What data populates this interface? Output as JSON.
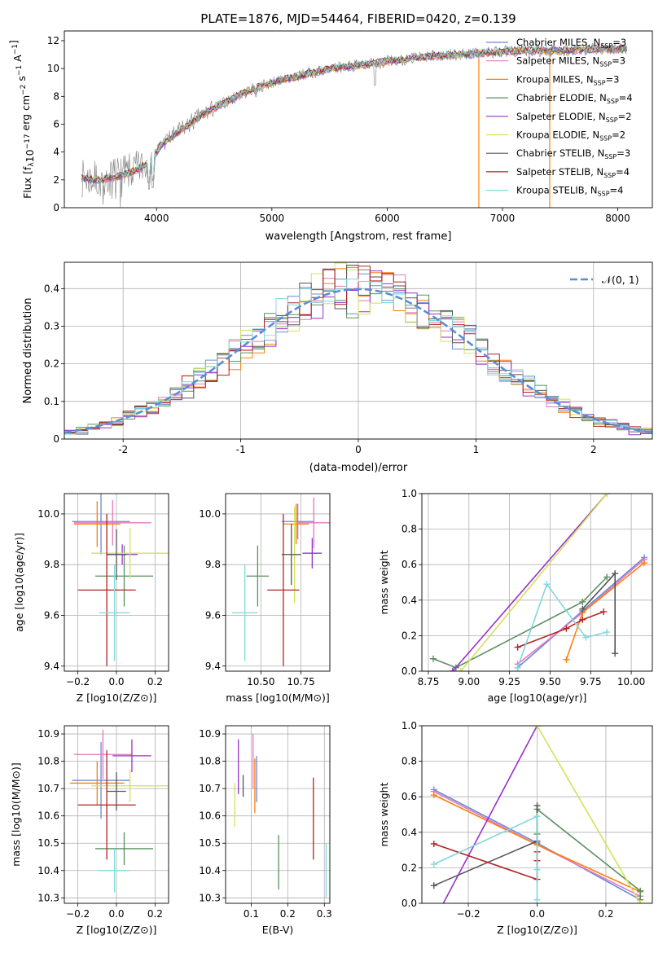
{
  "colors": {
    "Chabrier MILES": "#6a8ad8",
    "Salpeter MILES": "#e377c2",
    "Kroupa MILES": "#ff7f0e",
    "Chabrier ELODIE": "#5a8f61",
    "Salpeter ELODIE": "#9932cc",
    "Kroupa ELODIE": "#d4e157",
    "Chabrier STELIB": "#555555",
    "Salpeter STELIB": "#b22222",
    "Kroupa STELIB": "#7fd8dc",
    "data": "#7f7f7f",
    "normal": "#5b8dd9"
  },
  "chart_data": [
    {
      "id": "spectrum",
      "type": "line",
      "title": "PLATE=1876, MJD=54464, FIBERID=0420, z=0.139",
      "xlabel": "wavelength [Angstrom, rest frame]",
      "ylabel": "Flux [fλ10⁻¹⁷ erg cm⁻² s⁻¹ A⁻¹]",
      "xlim": [
        3200,
        8300
      ],
      "ylim": [
        0,
        12.7
      ],
      "xticks": [
        4000,
        5000,
        6000,
        7000,
        8000
      ],
      "yticks": [
        0,
        2,
        4,
        6,
        8,
        10,
        12
      ],
      "grid": false,
      "legend": "top-right",
      "continuum_x": [
        3350,
        3500,
        3700,
        3850,
        3950,
        4050,
        4200,
        4400,
        4600,
        4800,
        5000,
        5200,
        5400,
        5600,
        5800,
        6000,
        6200,
        6400,
        6600,
        6800,
        7000,
        7200,
        7400,
        7600,
        7800,
        8000,
        8080
      ],
      "continuum_y": [
        2.1,
        2.0,
        2.3,
        2.8,
        3.4,
        4.6,
        5.5,
        6.7,
        7.6,
        8.4,
        9.0,
        9.4,
        9.8,
        10.1,
        10.3,
        10.5,
        10.7,
        10.9,
        11.0,
        11.1,
        11.2,
        11.3,
        11.3,
        11.3,
        11.4,
        11.4,
        11.4
      ],
      "series": [
        {
          "name": "Chabrier MILES, N_SSP=3",
          "label_main": "Chabrier MILES, N",
          "label_sub": "SSP",
          "label_tail": "=3"
        },
        {
          "name": "Salpeter MILES, N_SSP=3",
          "label_main": "Salpeter MILES, N",
          "label_sub": "SSP",
          "label_tail": "=3"
        },
        {
          "name": "Kroupa MILES, N_SSP=3",
          "label_main": "Kroupa MILES, N",
          "label_sub": "SSP",
          "label_tail": "=3"
        },
        {
          "name": "Chabrier ELODIE, N_SSP=4",
          "label_main": "Chabrier ELODIE, N",
          "label_sub": "SSP",
          "label_tail": "=4"
        },
        {
          "name": "Salpeter ELODIE, N_SSP=2",
          "label_main": "Salpeter ELODIE, N",
          "label_sub": "SSP",
          "label_tail": "=2"
        },
        {
          "name": "Kroupa ELODIE, N_SSP=2",
          "label_main": "Kroupa ELODIE, N",
          "label_sub": "SSP",
          "label_tail": "=2"
        },
        {
          "name": "Chabrier STELIB, N_SSP=3",
          "label_main": "Chabrier STELIB, N",
          "label_sub": "SSP",
          "label_tail": "=3"
        },
        {
          "name": "Salpeter STELIB, N_SSP=4",
          "label_main": "Salpeter STELIB, N",
          "label_sub": "SSP",
          "label_tail": "=4"
        },
        {
          "name": "Kroupa STELIB, N_SSP=4",
          "label_main": "Kroupa STELIB, N",
          "label_sub": "SSP",
          "label_tail": "=4"
        }
      ],
      "vertical_lines": [
        {
          "x": 6795,
          "y0": 0,
          "y1": 10.7,
          "model": "Kroupa MILES"
        },
        {
          "x": 7410,
          "y0": 0,
          "y1": 11.3,
          "model": "Kroupa MILES"
        }
      ]
    },
    {
      "id": "residuals",
      "type": "histogram",
      "xlabel": "(data-model)/error",
      "ylabel": "Normed distribution",
      "xlim": [
        -2.5,
        2.5
      ],
      "ylim": [
        0,
        0.47
      ],
      "xticks": [
        -2,
        -1,
        0,
        1,
        2
      ],
      "yticks": [
        0.0,
        0.1,
        0.2,
        0.3,
        0.4
      ],
      "grid": true,
      "legend": "top-right",
      "legend_label": "𝒩(0, 1)",
      "bin_width": 0.1,
      "x_start": -2.5,
      "hist_models": [
        "Chabrier MILES",
        "Salpeter MILES",
        "Kroupa MILES",
        "Chabrier ELODIE",
        "Salpeter ELODIE",
        "Kroupa ELODIE",
        "Chabrier STELIB",
        "Salpeter STELIB",
        "Kroupa STELIB"
      ],
      "normal_curve": {
        "mean": 0,
        "sigma": 1
      }
    },
    {
      "id": "age-vs-Z",
      "type": "scatter",
      "xlabel": "Z [log10(Z/Z⊙)]",
      "ylabel": "age [log10(age/yr)]",
      "xlim": [
        -0.27,
        0.27
      ],
      "ylim": [
        9.38,
        10.08
      ],
      "xticks": [
        -0.2,
        0.0,
        0.2
      ],
      "xticklabels": [
        "−0.2",
        "0.0",
        "0.2"
      ],
      "yticks": [
        9.4,
        9.6,
        9.8,
        10.0
      ],
      "yticklabels": [
        "9.4",
        "9.6",
        "9.8",
        "10.0"
      ],
      "grid": true,
      "points": [
        {
          "model": "Chabrier MILES",
          "x": -0.08,
          "xerr": 0.15,
          "y": 9.97,
          "yerr": 0.13
        },
        {
          "model": "Salpeter MILES",
          "x": -0.02,
          "xerr": 0.2,
          "y": 9.965,
          "yerr": 0.09
        },
        {
          "model": "Kroupa MILES",
          "x": -0.1,
          "xerr": 0.12,
          "y": 9.96,
          "yerr": 0.09
        },
        {
          "model": "Chabrier ELODIE",
          "x": 0.04,
          "xerr": 0.15,
          "y": 9.755,
          "yerr": 0.12
        },
        {
          "model": "Salpeter ELODIE",
          "x": 0.03,
          "xerr": 0.08,
          "y": 9.84,
          "yerr": 0.04
        },
        {
          "model": "Kroupa ELODIE",
          "x": 0.07,
          "xerr": 0.2,
          "y": 9.845,
          "yerr": 0.1
        },
        {
          "model": "Chabrier STELIB",
          "x": 0.0,
          "xerr": 0.05,
          "y": 9.84,
          "yerr": 0.1
        },
        {
          "model": "Salpeter STELIB",
          "x": -0.05,
          "xerr": 0.15,
          "y": 9.7,
          "yerr": 0.3
        },
        {
          "model": "Kroupa STELIB",
          "x": -0.01,
          "xerr": 0.08,
          "y": 9.61,
          "yerr": 0.19
        }
      ]
    },
    {
      "id": "age-vs-mass",
      "type": "scatter",
      "xlabel": "mass [log10(M/M⊙)]",
      "ylabel": "",
      "xlim": [
        10.28,
        10.93
      ],
      "ylim": [
        9.38,
        10.08
      ],
      "xticks": [
        10.5,
        10.75
      ],
      "xticklabels": [
        "10.50",
        "10.75"
      ],
      "yticks": [
        9.4,
        9.6,
        9.8,
        10.0
      ],
      "yticklabels": [
        "9.4",
        "9.6",
        "9.8",
        "10.0"
      ],
      "grid": true,
      "points": [
        {
          "model": "Chabrier MILES",
          "x": 10.73,
          "xerr": 0.1,
          "y": 9.97,
          "yerr": 0.07
        },
        {
          "model": "Salpeter MILES",
          "x": 10.83,
          "xerr": 0.1,
          "y": 9.965,
          "yerr": 0.1
        },
        {
          "model": "Kroupa MILES",
          "x": 10.72,
          "xerr": 0.08,
          "y": 9.96,
          "yerr": 0.08
        },
        {
          "model": "Chabrier ELODIE",
          "x": 10.48,
          "xerr": 0.07,
          "y": 9.755,
          "yerr": 0.12
        },
        {
          "model": "Salpeter ELODIE",
          "x": 10.82,
          "xerr": 0.06,
          "y": 9.845,
          "yerr": 0.06
        },
        {
          "model": "Kroupa ELODIE",
          "x": 10.71,
          "xerr": 0.04,
          "y": 9.84,
          "yerr": 0.19
        },
        {
          "model": "Chabrier STELIB",
          "x": 10.69,
          "xerr": 0.06,
          "y": 9.84,
          "yerr": 0.12
        },
        {
          "model": "Salpeter STELIB",
          "x": 10.64,
          "xerr": 0.1,
          "y": 9.7,
          "yerr": 0.3
        },
        {
          "model": "Kroupa STELIB",
          "x": 10.4,
          "xerr": 0.08,
          "y": 9.61,
          "yerr": 0.19
        }
      ]
    },
    {
      "id": "weight-vs-age",
      "type": "line",
      "xlabel": "age [log10(age/yr)]",
      "ylabel": "mass weight",
      "xlim": [
        8.71,
        10.13
      ],
      "ylim": [
        0,
        1
      ],
      "xticks": [
        8.75,
        9.0,
        9.25,
        9.5,
        9.75,
        10.0
      ],
      "xticklabels": [
        "8.75",
        "9.00",
        "9.25",
        "9.50",
        "9.75",
        "10.00"
      ],
      "yticks": [
        0,
        0.2,
        0.4,
        0.6,
        0.8,
        1.0
      ],
      "yticklabels": [
        "0.0",
        "0.2",
        "0.4",
        "0.6",
        "0.8",
        "1.0"
      ],
      "grid": true,
      "series": [
        {
          "model": "Chabrier MILES",
          "x": [
            9.3,
            9.7,
            10.08
          ],
          "y": [
            0.02,
            0.34,
            0.64
          ]
        },
        {
          "model": "Salpeter MILES",
          "x": [
            9.3,
            9.7,
            10.08
          ],
          "y": [
            0.04,
            0.33,
            0.63
          ]
        },
        {
          "model": "Kroupa MILES",
          "x": [
            9.6,
            9.7,
            10.08
          ],
          "y": [
            0.065,
            0.33,
            0.61
          ]
        },
        {
          "model": "Chabrier ELODIE",
          "x": [
            8.78,
            8.92,
            9.7,
            9.85
          ],
          "y": [
            0.07,
            0.02,
            0.39,
            0.53
          ]
        },
        {
          "model": "Salpeter ELODIE",
          "x": [
            8.9,
            9.85
          ],
          "y": [
            0.0,
            1.0
          ]
        },
        {
          "model": "Kroupa ELODIE",
          "x": [
            8.95,
            9.85
          ],
          "y": [
            0.0,
            1.0
          ]
        },
        {
          "model": "Chabrier STELIB",
          "x": [
            9.7,
            9.9,
            9.9
          ],
          "y": [
            0.35,
            0.55,
            0.1
          ]
        },
        {
          "model": "Salpeter STELIB",
          "x": [
            9.3,
            9.6,
            9.7,
            9.83
          ],
          "y": [
            0.135,
            0.24,
            0.29,
            0.335
          ]
        },
        {
          "model": "Kroupa STELIB",
          "x": [
            9.3,
            9.48,
            9.72,
            9.85
          ],
          "y": [
            0.02,
            0.49,
            0.19,
            0.22
          ]
        }
      ]
    },
    {
      "id": "mass-vs-Z",
      "type": "scatter",
      "xlabel": "Z [log10(Z/Z⊙)]",
      "ylabel": "mass [log10(M/M⊙)]",
      "xlim": [
        -0.27,
        0.27
      ],
      "ylim": [
        10.28,
        10.93
      ],
      "xticks": [
        -0.2,
        0.0,
        0.2
      ],
      "xticklabels": [
        "−0.2",
        "0.0",
        "0.2"
      ],
      "yticks": [
        10.3,
        10.4,
        10.5,
        10.6,
        10.7,
        10.8,
        10.9
      ],
      "yticklabels": [
        "10.3",
        "10.4",
        "10.5",
        "10.6",
        "10.7",
        "10.8",
        "10.9"
      ],
      "grid": true,
      "points": [
        {
          "model": "Chabrier MILES",
          "x": -0.08,
          "xerr": 0.15,
          "y": 10.73,
          "yerr": 0.14
        },
        {
          "model": "Salpeter MILES",
          "x": -0.07,
          "xerr": 0.15,
          "y": 10.825,
          "yerr": 0.09
        },
        {
          "model": "Kroupa MILES",
          "x": -0.1,
          "xerr": 0.14,
          "y": 10.72,
          "yerr": 0.08
        },
        {
          "model": "Chabrier ELODIE",
          "x": 0.04,
          "xerr": 0.15,
          "y": 10.48,
          "yerr": 0.06
        },
        {
          "model": "Salpeter ELODIE",
          "x": 0.08,
          "xerr": 0.1,
          "y": 10.82,
          "yerr": 0.06
        },
        {
          "model": "Kroupa ELODIE",
          "x": 0.07,
          "xerr": 0.2,
          "y": 10.71,
          "yerr": 0.06
        },
        {
          "model": "Chabrier STELIB",
          "x": 0.0,
          "xerr": 0.05,
          "y": 10.69,
          "yerr": 0.07
        },
        {
          "model": "Salpeter STELIB",
          "x": -0.05,
          "xerr": 0.15,
          "y": 10.64,
          "yerr": 0.2
        },
        {
          "model": "Kroupa STELIB",
          "x": -0.01,
          "xerr": 0.08,
          "y": 10.4,
          "yerr": 0.08
        }
      ]
    },
    {
      "id": "mass-vs-EBV",
      "type": "scatter",
      "xlabel": "E(B-V)",
      "ylabel": "",
      "xlim": [
        0.03,
        0.315
      ],
      "ylim": [
        10.28,
        10.93
      ],
      "xticks": [
        0.1,
        0.2,
        0.3
      ],
      "xticklabels": [
        "0.1",
        "0.2",
        "0.3"
      ],
      "yticks": [
        10.3,
        10.4,
        10.5,
        10.6,
        10.7,
        10.8,
        10.9
      ],
      "yticklabels": [
        "10.3",
        "10.4",
        "10.5",
        "10.6",
        "10.7",
        "10.8",
        "10.9"
      ],
      "grid": true,
      "points": [
        {
          "model": "Chabrier MILES",
          "x": 0.115,
          "y": 10.735,
          "yerr": 0.085
        },
        {
          "model": "Salpeter MILES",
          "x": 0.105,
          "y": 10.8,
          "yerr": 0.1
        },
        {
          "model": "Kroupa MILES",
          "x": 0.11,
          "y": 10.71,
          "yerr": 0.1
        },
        {
          "model": "Chabrier ELODIE",
          "x": 0.175,
          "y": 10.43,
          "yerr": 0.1
        },
        {
          "model": "Salpeter ELODIE",
          "x": 0.065,
          "y": 10.78,
          "yerr": 0.1
        },
        {
          "model": "Kroupa ELODIE",
          "x": 0.055,
          "y": 10.64,
          "yerr": 0.08
        },
        {
          "model": "Chabrier STELIB",
          "x": 0.078,
          "y": 10.71,
          "yerr": 0.04
        },
        {
          "model": "Salpeter STELIB",
          "x": 0.27,
          "y": 10.59,
          "yerr": 0.15
        },
        {
          "model": "Kroupa STELIB",
          "x": 0.305,
          "y": 10.4,
          "yerr": 0.1
        }
      ]
    },
    {
      "id": "weight-vs-Z",
      "type": "line",
      "xlabel": "Z [log10(Z/Z⊙)]",
      "ylabel": "mass weight",
      "xlim": [
        -0.335,
        0.335
      ],
      "ylim": [
        0,
        1
      ],
      "xticks": [
        -0.2,
        0.0,
        0.2
      ],
      "xticklabels": [
        "−0.2",
        "0.0",
        "0.2"
      ],
      "yticks": [
        0,
        0.2,
        0.4,
        0.6,
        0.8,
        1.0
      ],
      "yticklabels": [
        "0.0",
        "0.2",
        "0.4",
        "0.6",
        "0.8",
        "1.0"
      ],
      "grid": true,
      "series": [
        {
          "model": "Chabrier MILES",
          "x": [
            -0.3,
            0.0,
            0.3
          ],
          "y": [
            0.64,
            0.34,
            0.02
          ]
        },
        {
          "model": "Salpeter MILES",
          "x": [
            -0.3,
            0.0,
            0.3
          ],
          "y": [
            0.63,
            0.33,
            0.04
          ]
        },
        {
          "model": "Kroupa MILES",
          "x": [
            -0.3,
            0.0,
            0.3
          ],
          "y": [
            0.61,
            0.33,
            0.065
          ]
        },
        {
          "model": "Chabrier ELODIE",
          "x": [
            0.0,
            0.0,
            0.3,
            0.3
          ],
          "y": [
            0.39,
            0.53,
            0.07,
            0.02
          ]
        },
        {
          "model": "Salpeter ELODIE",
          "x": [
            -0.3,
            0.0
          ],
          "y": [
            -0.1,
            1.0
          ]
        },
        {
          "model": "Kroupa ELODIE",
          "x": [
            0.0,
            0.3
          ],
          "y": [
            1.0,
            0.0
          ]
        },
        {
          "model": "Chabrier STELIB",
          "x": [
            -0.3,
            0.0,
            0.0
          ],
          "y": [
            0.1,
            0.35,
            0.55
          ]
        },
        {
          "model": "Salpeter STELIB",
          "x": [
            -0.3,
            0.0,
            0.0,
            0.0
          ],
          "y": [
            0.335,
            0.135,
            0.24,
            0.29
          ]
        },
        {
          "model": "Kroupa STELIB",
          "x": [
            -0.3,
            0.0,
            0.0,
            0.0
          ],
          "y": [
            0.22,
            0.49,
            0.19,
            0.02
          ]
        }
      ]
    }
  ]
}
